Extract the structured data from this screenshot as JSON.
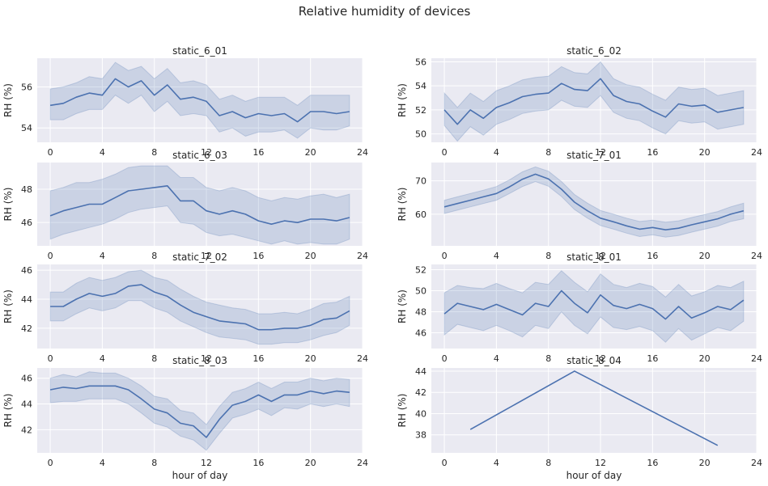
{
  "figure": {
    "title": "Relative humidity of devices"
  },
  "colors": {
    "line": "#4c72b0",
    "band": "#4c72b0",
    "panel_bg": "#eaeaf2",
    "grid": "#ffffff"
  },
  "chart_data": [
    {
      "type": "line",
      "title": "static_6_01",
      "xlabel": "",
      "ylabel": "RH (%)",
      "xlim": [
        -1,
        24
      ],
      "ylim": [
        53.3,
        57.4
      ],
      "xticks": [
        0,
        4,
        8,
        12,
        16,
        20,
        24
      ],
      "yticks": [
        54,
        56
      ],
      "x": [
        0,
        1,
        2,
        3,
        4,
        5,
        6,
        7,
        8,
        9,
        10,
        11,
        12,
        13,
        14,
        15,
        16,
        17,
        18,
        19,
        20,
        21,
        22,
        23
      ],
      "series": [
        {
          "values": [
            55.1,
            55.2,
            55.5,
            55.7,
            55.6,
            56.4,
            56.0,
            56.3,
            55.6,
            56.1,
            55.4,
            55.5,
            55.3,
            54.6,
            54.8,
            54.5,
            54.7,
            54.6,
            54.7,
            54.3,
            54.8,
            54.8,
            54.7,
            54.8
          ],
          "ci_low": [
            54.4,
            54.4,
            54.7,
            54.9,
            54.9,
            55.6,
            55.2,
            55.6,
            54.8,
            55.3,
            54.6,
            54.7,
            54.6,
            53.8,
            54.0,
            53.6,
            53.8,
            53.8,
            53.9,
            53.5,
            54.0,
            53.9,
            53.9,
            54.1
          ],
          "ci_high": [
            55.9,
            56.0,
            56.2,
            56.5,
            56.4,
            57.2,
            56.8,
            57.0,
            56.4,
            56.9,
            56.2,
            56.3,
            56.1,
            55.4,
            55.6,
            55.3,
            55.5,
            55.5,
            55.5,
            55.1,
            55.6,
            55.6,
            55.6,
            55.6
          ]
        }
      ]
    },
    {
      "type": "line",
      "title": "static_6_02",
      "xlabel": "",
      "ylabel": "RH (%)",
      "xlim": [
        -1,
        24
      ],
      "ylim": [
        49.3,
        56.3
      ],
      "xticks": [
        0,
        4,
        8,
        12,
        16,
        20,
        24
      ],
      "yticks": [
        50,
        52,
        54,
        56
      ],
      "x": [
        0,
        1,
        2,
        3,
        4,
        5,
        6,
        7,
        8,
        9,
        10,
        11,
        12,
        13,
        14,
        15,
        16,
        17,
        18,
        19,
        20,
        21,
        22,
        23
      ],
      "series": [
        {
          "values": [
            52.0,
            50.8,
            52.0,
            51.3,
            52.2,
            52.6,
            53.1,
            53.3,
            53.4,
            54.2,
            53.7,
            53.6,
            54.6,
            53.2,
            52.7,
            52.5,
            51.9,
            51.4,
            52.5,
            52.3,
            52.4,
            51.8,
            52.0,
            52.2
          ],
          "ci_low": [
            50.7,
            49.4,
            50.6,
            49.9,
            50.8,
            51.2,
            51.7,
            51.9,
            52.0,
            52.8,
            52.3,
            52.2,
            53.2,
            51.8,
            51.3,
            51.1,
            50.5,
            50.0,
            51.1,
            50.9,
            51.0,
            50.4,
            50.6,
            50.8
          ],
          "ci_high": [
            53.4,
            52.2,
            53.4,
            52.7,
            53.6,
            54.0,
            54.5,
            54.7,
            54.8,
            55.6,
            55.1,
            55.0,
            56.0,
            54.6,
            54.1,
            53.9,
            53.3,
            52.8,
            53.9,
            53.7,
            53.8,
            53.2,
            53.4,
            53.6
          ]
        }
      ]
    },
    {
      "type": "line",
      "title": "static_6_03",
      "xlabel": "",
      "ylabel": "RH (%)",
      "xlim": [
        -1,
        24
      ],
      "ylim": [
        44.6,
        49.6
      ],
      "xticks": [
        0,
        4,
        8,
        12,
        16,
        20,
        24
      ],
      "yticks": [
        46,
        48
      ],
      "x": [
        0,
        1,
        2,
        3,
        4,
        5,
        6,
        7,
        8,
        9,
        10,
        11,
        12,
        13,
        14,
        15,
        16,
        17,
        18,
        19,
        20,
        21,
        22,
        23
      ],
      "series": [
        {
          "values": [
            46.4,
            46.7,
            46.9,
            47.1,
            47.1,
            47.5,
            47.9,
            48.0,
            48.1,
            48.2,
            47.3,
            47.3,
            46.7,
            46.5,
            46.7,
            46.5,
            46.1,
            45.9,
            46.1,
            46.0,
            46.2,
            46.2,
            46.1,
            46.3
          ],
          "ci_low": [
            45.0,
            45.3,
            45.5,
            45.7,
            45.9,
            46.2,
            46.6,
            46.8,
            46.9,
            47.0,
            46.0,
            45.9,
            45.4,
            45.2,
            45.3,
            45.1,
            44.9,
            44.7,
            44.9,
            44.7,
            44.8,
            44.7,
            44.7,
            45.0
          ],
          "ci_high": [
            47.9,
            48.1,
            48.4,
            48.4,
            48.6,
            48.9,
            49.3,
            49.4,
            49.4,
            49.4,
            48.7,
            48.7,
            48.1,
            47.9,
            48.1,
            47.9,
            47.5,
            47.3,
            47.5,
            47.4,
            47.6,
            47.7,
            47.5,
            47.7
          ]
        }
      ]
    },
    {
      "type": "line",
      "title": "static_7_01",
      "xlabel": "",
      "ylabel": "RH (%)",
      "xlim": [
        -1,
        24
      ],
      "ylim": [
        50.5,
        75.5
      ],
      "xticks": [
        0,
        4,
        8,
        12,
        16,
        20,
        24
      ],
      "yticks": [
        60,
        70
      ],
      "x": [
        0,
        1,
        2,
        3,
        4,
        5,
        6,
        7,
        8,
        9,
        10,
        11,
        12,
        13,
        14,
        15,
        16,
        17,
        18,
        19,
        20,
        21,
        22,
        23
      ],
      "series": [
        {
          "values": [
            62.2,
            63.2,
            64.2,
            65.2,
            66.2,
            68.2,
            70.5,
            72.0,
            70.6,
            67.5,
            63.6,
            61.0,
            58.8,
            57.7,
            56.5,
            55.5,
            56.0,
            55.3,
            55.8,
            56.8,
            57.7,
            58.6,
            60.0,
            61.0
          ],
          "ci_low": [
            60.2,
            61.2,
            62.2,
            63.2,
            64.2,
            66.2,
            68.3,
            69.8,
            68.4,
            65.3,
            61.4,
            58.8,
            56.6,
            55.5,
            54.3,
            53.3,
            53.8,
            53.1,
            53.6,
            54.6,
            55.5,
            56.4,
            57.8,
            58.6
          ],
          "ci_high": [
            64.2,
            65.2,
            66.2,
            67.2,
            68.3,
            70.3,
            72.7,
            74.2,
            72.9,
            69.8,
            65.9,
            63.3,
            61.1,
            60.0,
            58.8,
            57.8,
            58.2,
            57.6,
            58.0,
            59.0,
            59.9,
            60.8,
            62.2,
            63.3
          ]
        }
      ]
    },
    {
      "type": "line",
      "title": "static_7_02",
      "xlabel": "",
      "ylabel": "RH (%)",
      "xlim": [
        -1,
        24
      ],
      "ylim": [
        40.6,
        46.4
      ],
      "xticks": [
        0,
        4,
        8,
        12,
        16,
        20,
        24
      ],
      "yticks": [
        42,
        44,
        46
      ],
      "x": [
        0,
        1,
        2,
        3,
        4,
        5,
        6,
        7,
        8,
        9,
        10,
        11,
        12,
        13,
        14,
        15,
        16,
        17,
        18,
        19,
        20,
        21,
        22,
        23
      ],
      "series": [
        {
          "values": [
            43.5,
            43.5,
            44.0,
            44.4,
            44.2,
            44.4,
            44.9,
            45.0,
            44.5,
            44.2,
            43.6,
            43.1,
            42.8,
            42.5,
            42.4,
            42.3,
            41.9,
            41.9,
            42.0,
            42.0,
            42.2,
            42.6,
            42.7,
            43.2
          ],
          "ci_low": [
            42.5,
            42.5,
            43.0,
            43.4,
            43.2,
            43.4,
            43.9,
            43.9,
            43.4,
            43.1,
            42.5,
            42.1,
            41.7,
            41.4,
            41.3,
            41.2,
            40.9,
            40.9,
            41.0,
            41.0,
            41.2,
            41.5,
            41.7,
            42.2
          ],
          "ci_high": [
            44.5,
            44.5,
            45.1,
            45.5,
            45.3,
            45.5,
            45.9,
            46.0,
            45.5,
            45.3,
            44.7,
            44.2,
            43.8,
            43.6,
            43.4,
            43.3,
            43.0,
            43.0,
            43.1,
            43.0,
            43.3,
            43.7,
            43.8,
            44.2
          ]
        }
      ]
    },
    {
      "type": "line",
      "title": "static_8_01",
      "xlabel": "",
      "ylabel": "RH (%)",
      "xlim": [
        -1,
        24
      ],
      "ylim": [
        44.5,
        52.5
      ],
      "xticks": [
        0,
        4,
        8,
        12,
        16,
        20,
        24
      ],
      "yticks": [
        46,
        48,
        50,
        52
      ],
      "x": [
        0,
        1,
        2,
        3,
        4,
        5,
        6,
        7,
        8,
        9,
        10,
        11,
        12,
        13,
        14,
        15,
        16,
        17,
        18,
        19,
        20,
        21,
        22,
        23
      ],
      "series": [
        {
          "values": [
            47.8,
            48.8,
            48.5,
            48.2,
            48.7,
            48.2,
            47.7,
            48.8,
            48.5,
            50.0,
            48.8,
            47.9,
            49.6,
            48.6,
            48.3,
            48.7,
            48.3,
            47.3,
            48.5,
            47.4,
            47.9,
            48.5,
            48.2,
            49.1
          ],
          "ci_low": [
            45.8,
            46.8,
            46.5,
            46.2,
            46.7,
            46.2,
            45.6,
            46.7,
            46.4,
            48.0,
            46.7,
            45.9,
            47.5,
            46.5,
            46.3,
            46.6,
            46.2,
            45.1,
            46.4,
            45.3,
            45.9,
            46.5,
            46.2,
            47.1
          ],
          "ci_high": [
            49.8,
            50.5,
            50.3,
            50.2,
            50.7,
            50.2,
            49.8,
            50.8,
            50.6,
            51.9,
            50.8,
            49.9,
            51.6,
            50.6,
            50.3,
            50.7,
            50.4,
            49.4,
            50.6,
            49.5,
            49.9,
            50.5,
            50.3,
            50.9
          ]
        }
      ]
    },
    {
      "type": "line",
      "title": "static_8_03",
      "xlabel": "hour of day",
      "ylabel": "RH (%)",
      "xlim": [
        -1,
        24
      ],
      "ylim": [
        40.2,
        46.8
      ],
      "xticks": [
        0,
        4,
        8,
        12,
        16,
        20,
        24
      ],
      "yticks": [
        42,
        44,
        46
      ],
      "x": [
        0,
        1,
        2,
        3,
        4,
        5,
        6,
        7,
        8,
        9,
        10,
        11,
        12,
        13,
        14,
        15,
        16,
        17,
        18,
        19,
        20,
        21,
        22,
        23
      ],
      "series": [
        {
          "values": [
            45.1,
            45.3,
            45.2,
            45.4,
            45.4,
            45.4,
            45.1,
            44.4,
            43.6,
            43.3,
            42.5,
            42.3,
            41.4,
            42.8,
            43.9,
            44.2,
            44.7,
            44.2,
            44.7,
            44.7,
            45.0,
            44.8,
            45.0,
            44.9
          ],
          "ci_low": [
            44.1,
            44.2,
            44.2,
            44.4,
            44.4,
            44.4,
            44.0,
            43.3,
            42.5,
            42.2,
            41.5,
            41.2,
            40.4,
            41.7,
            42.9,
            43.2,
            43.6,
            43.1,
            43.7,
            43.6,
            44.0,
            43.8,
            44.0,
            43.8
          ],
          "ci_high": [
            46.0,
            46.3,
            46.1,
            46.5,
            46.4,
            46.4,
            46.0,
            45.4,
            44.6,
            44.4,
            43.5,
            43.3,
            42.4,
            43.8,
            44.9,
            45.2,
            45.7,
            45.2,
            45.7,
            45.7,
            46.0,
            45.8,
            46.0,
            45.9
          ]
        }
      ]
    },
    {
      "type": "line",
      "title": "static_8_04",
      "xlabel": "hour of day",
      "ylabel": "RH (%)",
      "xlim": [
        -1,
        24
      ],
      "ylim": [
        36.3,
        44.3
      ],
      "xticks": [
        0,
        4,
        8,
        12,
        16,
        20,
        24
      ],
      "yticks": [
        38,
        40,
        42,
        44
      ],
      "x": [
        2,
        10,
        21
      ],
      "series": [
        {
          "values": [
            38.5,
            44.0,
            37.0
          ]
        }
      ]
    }
  ]
}
